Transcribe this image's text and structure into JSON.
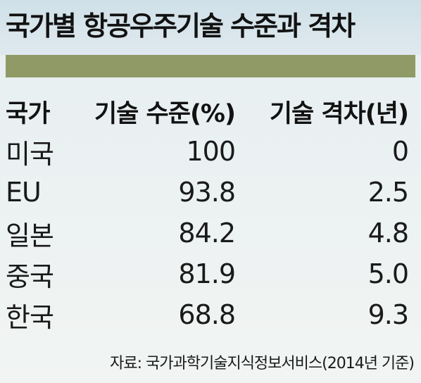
{
  "title": "국가별 항공우주기술 수준과 격차",
  "headers": {
    "country": "국가",
    "level": "기술 수준(%)",
    "gap": "기술 격차(년)"
  },
  "rows": [
    {
      "country": "미국",
      "level": "100",
      "gap": "0"
    },
    {
      "country": "EU",
      "level": "93.8",
      "gap": "2.5"
    },
    {
      "country": "일본",
      "level": "84.2",
      "gap": "4.8"
    },
    {
      "country": "중국",
      "level": "81.9",
      "gap": "5.0"
    },
    {
      "country": "한국",
      "level": "68.8",
      "gap": "9.3"
    }
  ],
  "source": "자료: 국가과학기술지식정보서비스(2014년 기준)",
  "colors": {
    "accent_bar": "#8f9a67",
    "text": "#121212"
  },
  "chart_data": {
    "type": "table",
    "title": "국가별 항공우주기술 수준과 격차",
    "columns": [
      "국가",
      "기술 수준(%)",
      "기술 격차(년)"
    ],
    "categories": [
      "미국",
      "EU",
      "일본",
      "중국",
      "한국"
    ],
    "series": [
      {
        "name": "기술 수준(%)",
        "values": [
          100,
          93.8,
          84.2,
          81.9,
          68.8
        ]
      },
      {
        "name": "기술 격차(년)",
        "values": [
          0,
          2.5,
          4.8,
          5.0,
          9.3
        ]
      }
    ]
  }
}
